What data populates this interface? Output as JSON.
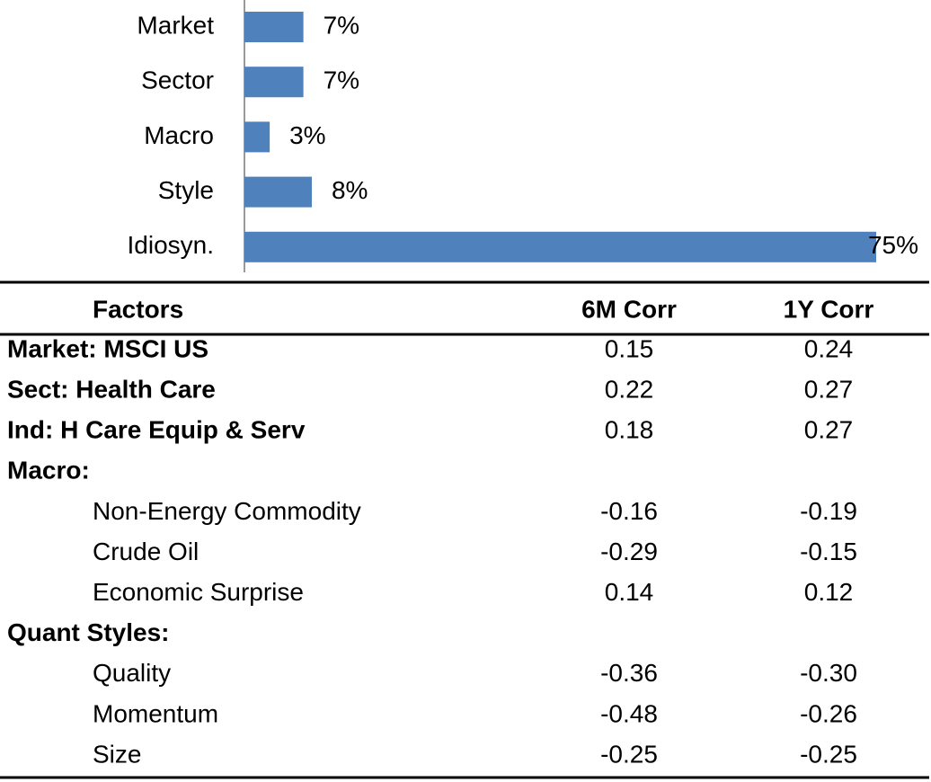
{
  "chart_data": {
    "type": "bar",
    "orientation": "horizontal",
    "color": "#4f81bd",
    "categories": [
      "Market",
      "Sector",
      "Macro",
      "Style",
      "Idiosyn."
    ],
    "values": [
      7,
      7,
      3,
      8,
      75
    ],
    "value_labels": [
      "7%",
      "7%",
      "3%",
      "8%",
      "75%"
    ]
  },
  "table": {
    "header": [
      "Factors",
      "6M Corr",
      "1Y Corr"
    ],
    "sections": [
      {
        "rows": [
          {
            "label": "Market: MSCI US",
            "values": [
              "0.15",
              "0.24"
            ]
          },
          {
            "label": "Sect: Health Care",
            "values": [
              "0.22",
              "0.27"
            ]
          },
          {
            "label": "Ind: H Care Equip & Serv",
            "values": [
              "0.18",
              "0.27"
            ]
          }
        ]
      },
      {
        "heading": "Macro:",
        "rows": [
          {
            "label": "Non-Energy Commodity",
            "values": [
              "-0.16",
              "-0.19"
            ]
          },
          {
            "label": "Crude Oil",
            "values": [
              "-0.29",
              "-0.15"
            ]
          },
          {
            "label": "Economic Surprise",
            "values": [
              "0.14",
              "0.12"
            ]
          }
        ]
      },
      {
        "heading": "Quant Styles:",
        "rows": [
          {
            "label": "Quality",
            "values": [
              "-0.36",
              "-0.30"
            ]
          },
          {
            "label": "Momentum",
            "values": [
              "-0.48",
              "-0.26"
            ]
          },
          {
            "label": "Size",
            "values": [
              "-0.25",
              "-0.25"
            ]
          }
        ]
      }
    ]
  }
}
